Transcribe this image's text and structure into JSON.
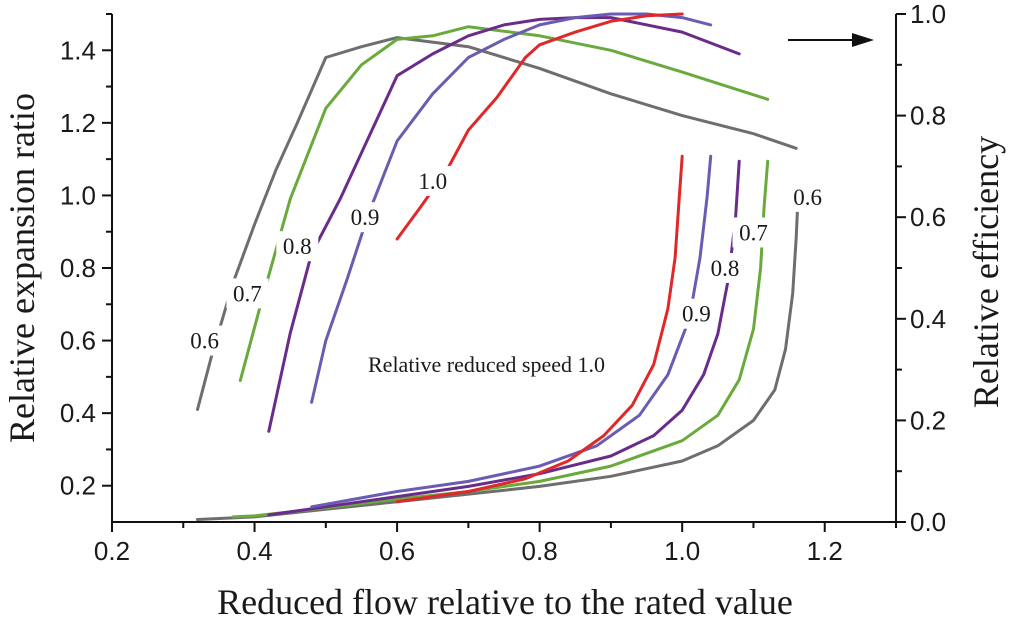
{
  "chart_data": {
    "type": "line",
    "xlabel": "Reduced flow relative to the rated value",
    "ylabel_left": "Relative expansion ratio",
    "ylabel_right": "Relative efficiency",
    "xlim": [
      0.2,
      1.3
    ],
    "ylim_left": [
      0.1,
      1.5
    ],
    "ylim_right": [
      0.0,
      1.0
    ],
    "x_ticks": [
      "0.2",
      "0.4",
      "0.6",
      "0.8",
      "1.0",
      "1.2"
    ],
    "x_tick_values": [
      0.2,
      0.4,
      0.6,
      0.8,
      1.0,
      1.2
    ],
    "y_left_ticks": [
      "0.2",
      "0.4",
      "0.6",
      "0.8",
      "1.0",
      "1.2",
      "1.4"
    ],
    "y_left_tick_values": [
      0.2,
      0.4,
      0.6,
      0.8,
      1.0,
      1.2,
      1.4
    ],
    "y_right_ticks": [
      "0.0",
      "0.2",
      "0.4",
      "0.6",
      "0.8",
      "1.0"
    ],
    "y_right_tick_values": [
      0.0,
      0.2,
      0.4,
      0.6,
      0.8,
      1.0
    ],
    "annotation": "Relative reduced speed 1.0",
    "efficiency_arrow": "right",
    "expansion_series": [
      {
        "name": "0.6",
        "color": "#6e6e6e",
        "axis": "left",
        "x": [
          0.32,
          0.34,
          0.37,
          0.4,
          0.43,
          0.46,
          0.5,
          0.55,
          0.6,
          0.7,
          0.8,
          0.9,
          1.0,
          1.1,
          1.16
        ],
        "y": [
          0.41,
          0.56,
          0.76,
          0.92,
          1.07,
          1.2,
          1.38,
          1.41,
          1.435,
          1.41,
          1.35,
          1.28,
          1.22,
          1.17,
          1.13
        ],
        "label_x": 0.33,
        "label_y": 0.6
      },
      {
        "name": "0.7",
        "color": "#6aaa3c",
        "axis": "left",
        "x": [
          0.38,
          0.41,
          0.45,
          0.5,
          0.55,
          0.6,
          0.65,
          0.7,
          0.8,
          0.9,
          1.0,
          1.12
        ],
        "y": [
          0.49,
          0.71,
          0.99,
          1.24,
          1.36,
          1.43,
          1.44,
          1.465,
          1.44,
          1.4,
          1.34,
          1.265
        ],
        "label_x": 0.39,
        "label_y": 0.73
      },
      {
        "name": "0.8",
        "color": "#6a2c8a",
        "axis": "left",
        "x": [
          0.42,
          0.45,
          0.48,
          0.52,
          0.56,
          0.6,
          0.65,
          0.7,
          0.75,
          0.8,
          0.85,
          0.9,
          1.0,
          1.08
        ],
        "y": [
          0.35,
          0.62,
          0.84,
          0.99,
          1.16,
          1.33,
          1.39,
          1.44,
          1.47,
          1.485,
          1.49,
          1.49,
          1.45,
          1.39
        ],
        "label_x": 0.46,
        "label_y": 0.86
      },
      {
        "name": "0.9",
        "color": "#6a5cb2",
        "axis": "left",
        "x": [
          0.48,
          0.5,
          0.53,
          0.56,
          0.6,
          0.65,
          0.7,
          0.75,
          0.8,
          0.85,
          0.9,
          0.95,
          1.0,
          1.04
        ],
        "y": [
          0.43,
          0.6,
          0.77,
          0.95,
          1.15,
          1.28,
          1.38,
          1.43,
          1.47,
          1.49,
          1.5,
          1.5,
          1.49,
          1.47
        ],
        "label_x": 0.555,
        "label_y": 0.94
      },
      {
        "name": "1.0",
        "color": "#e0282a",
        "axis": "left",
        "x": [
          0.6,
          0.63,
          0.67,
          0.7,
          0.74,
          0.78,
          0.8,
          0.85,
          0.9,
          0.95,
          1.0
        ],
        "y": [
          0.88,
          0.96,
          1.07,
          1.18,
          1.27,
          1.38,
          1.415,
          1.45,
          1.48,
          1.495,
          1.5
        ],
        "label_x": 0.65,
        "label_y": 1.04
      }
    ],
    "efficiency_series": [
      {
        "name": "0.6",
        "color": "#6e6e6e",
        "axis": "right",
        "x": [
          0.32,
          0.4,
          0.5,
          0.6,
          0.7,
          0.8,
          0.9,
          1.0,
          1.05,
          1.1,
          1.13,
          1.145,
          1.155,
          1.16,
          1.162
        ],
        "y": [
          0.005,
          0.01,
          0.025,
          0.04,
          0.055,
          0.07,
          0.09,
          0.12,
          0.15,
          0.2,
          0.26,
          0.34,
          0.45,
          0.56,
          0.62
        ],
        "label_x": 1.176,
        "label_y": 0.64
      },
      {
        "name": "0.7",
        "color": "#6aaa3c",
        "axis": "right",
        "x": [
          0.37,
          0.4,
          0.5,
          0.6,
          0.7,
          0.8,
          0.9,
          1.0,
          1.05,
          1.08,
          1.1,
          1.11,
          1.115,
          1.12
        ],
        "y": [
          0.01,
          0.012,
          0.028,
          0.045,
          0.06,
          0.08,
          0.11,
          0.16,
          0.21,
          0.28,
          0.38,
          0.5,
          0.62,
          0.71
        ],
        "label_x": 1.1,
        "label_y": 0.57
      },
      {
        "name": "0.8",
        "color": "#6a2c8a",
        "axis": "right",
        "x": [
          0.42,
          0.5,
          0.6,
          0.7,
          0.8,
          0.9,
          0.96,
          1.0,
          1.03,
          1.05,
          1.065,
          1.075,
          1.08
        ],
        "y": [
          0.014,
          0.03,
          0.05,
          0.07,
          0.095,
          0.13,
          0.17,
          0.22,
          0.29,
          0.37,
          0.48,
          0.6,
          0.71
        ],
        "label_x": 1.06,
        "label_y": 0.5
      },
      {
        "name": "0.9",
        "color": "#6a5cb2",
        "axis": "right",
        "x": [
          0.48,
          0.6,
          0.7,
          0.8,
          0.88,
          0.94,
          0.98,
          1.01,
          1.025,
          1.035,
          1.04
        ],
        "y": [
          0.03,
          0.06,
          0.08,
          0.11,
          0.15,
          0.21,
          0.29,
          0.4,
          0.52,
          0.64,
          0.72
        ],
        "label_x": 1.02,
        "label_y": 0.41
      },
      {
        "name": "1.0",
        "color": "#e0282a",
        "axis": "right",
        "x": [
          0.6,
          0.7,
          0.78,
          0.84,
          0.89,
          0.93,
          0.96,
          0.98,
          0.99,
          0.995,
          1.0
        ],
        "y": [
          0.04,
          0.06,
          0.085,
          0.12,
          0.17,
          0.23,
          0.31,
          0.42,
          0.52,
          0.62,
          0.72
        ]
      }
    ]
  }
}
